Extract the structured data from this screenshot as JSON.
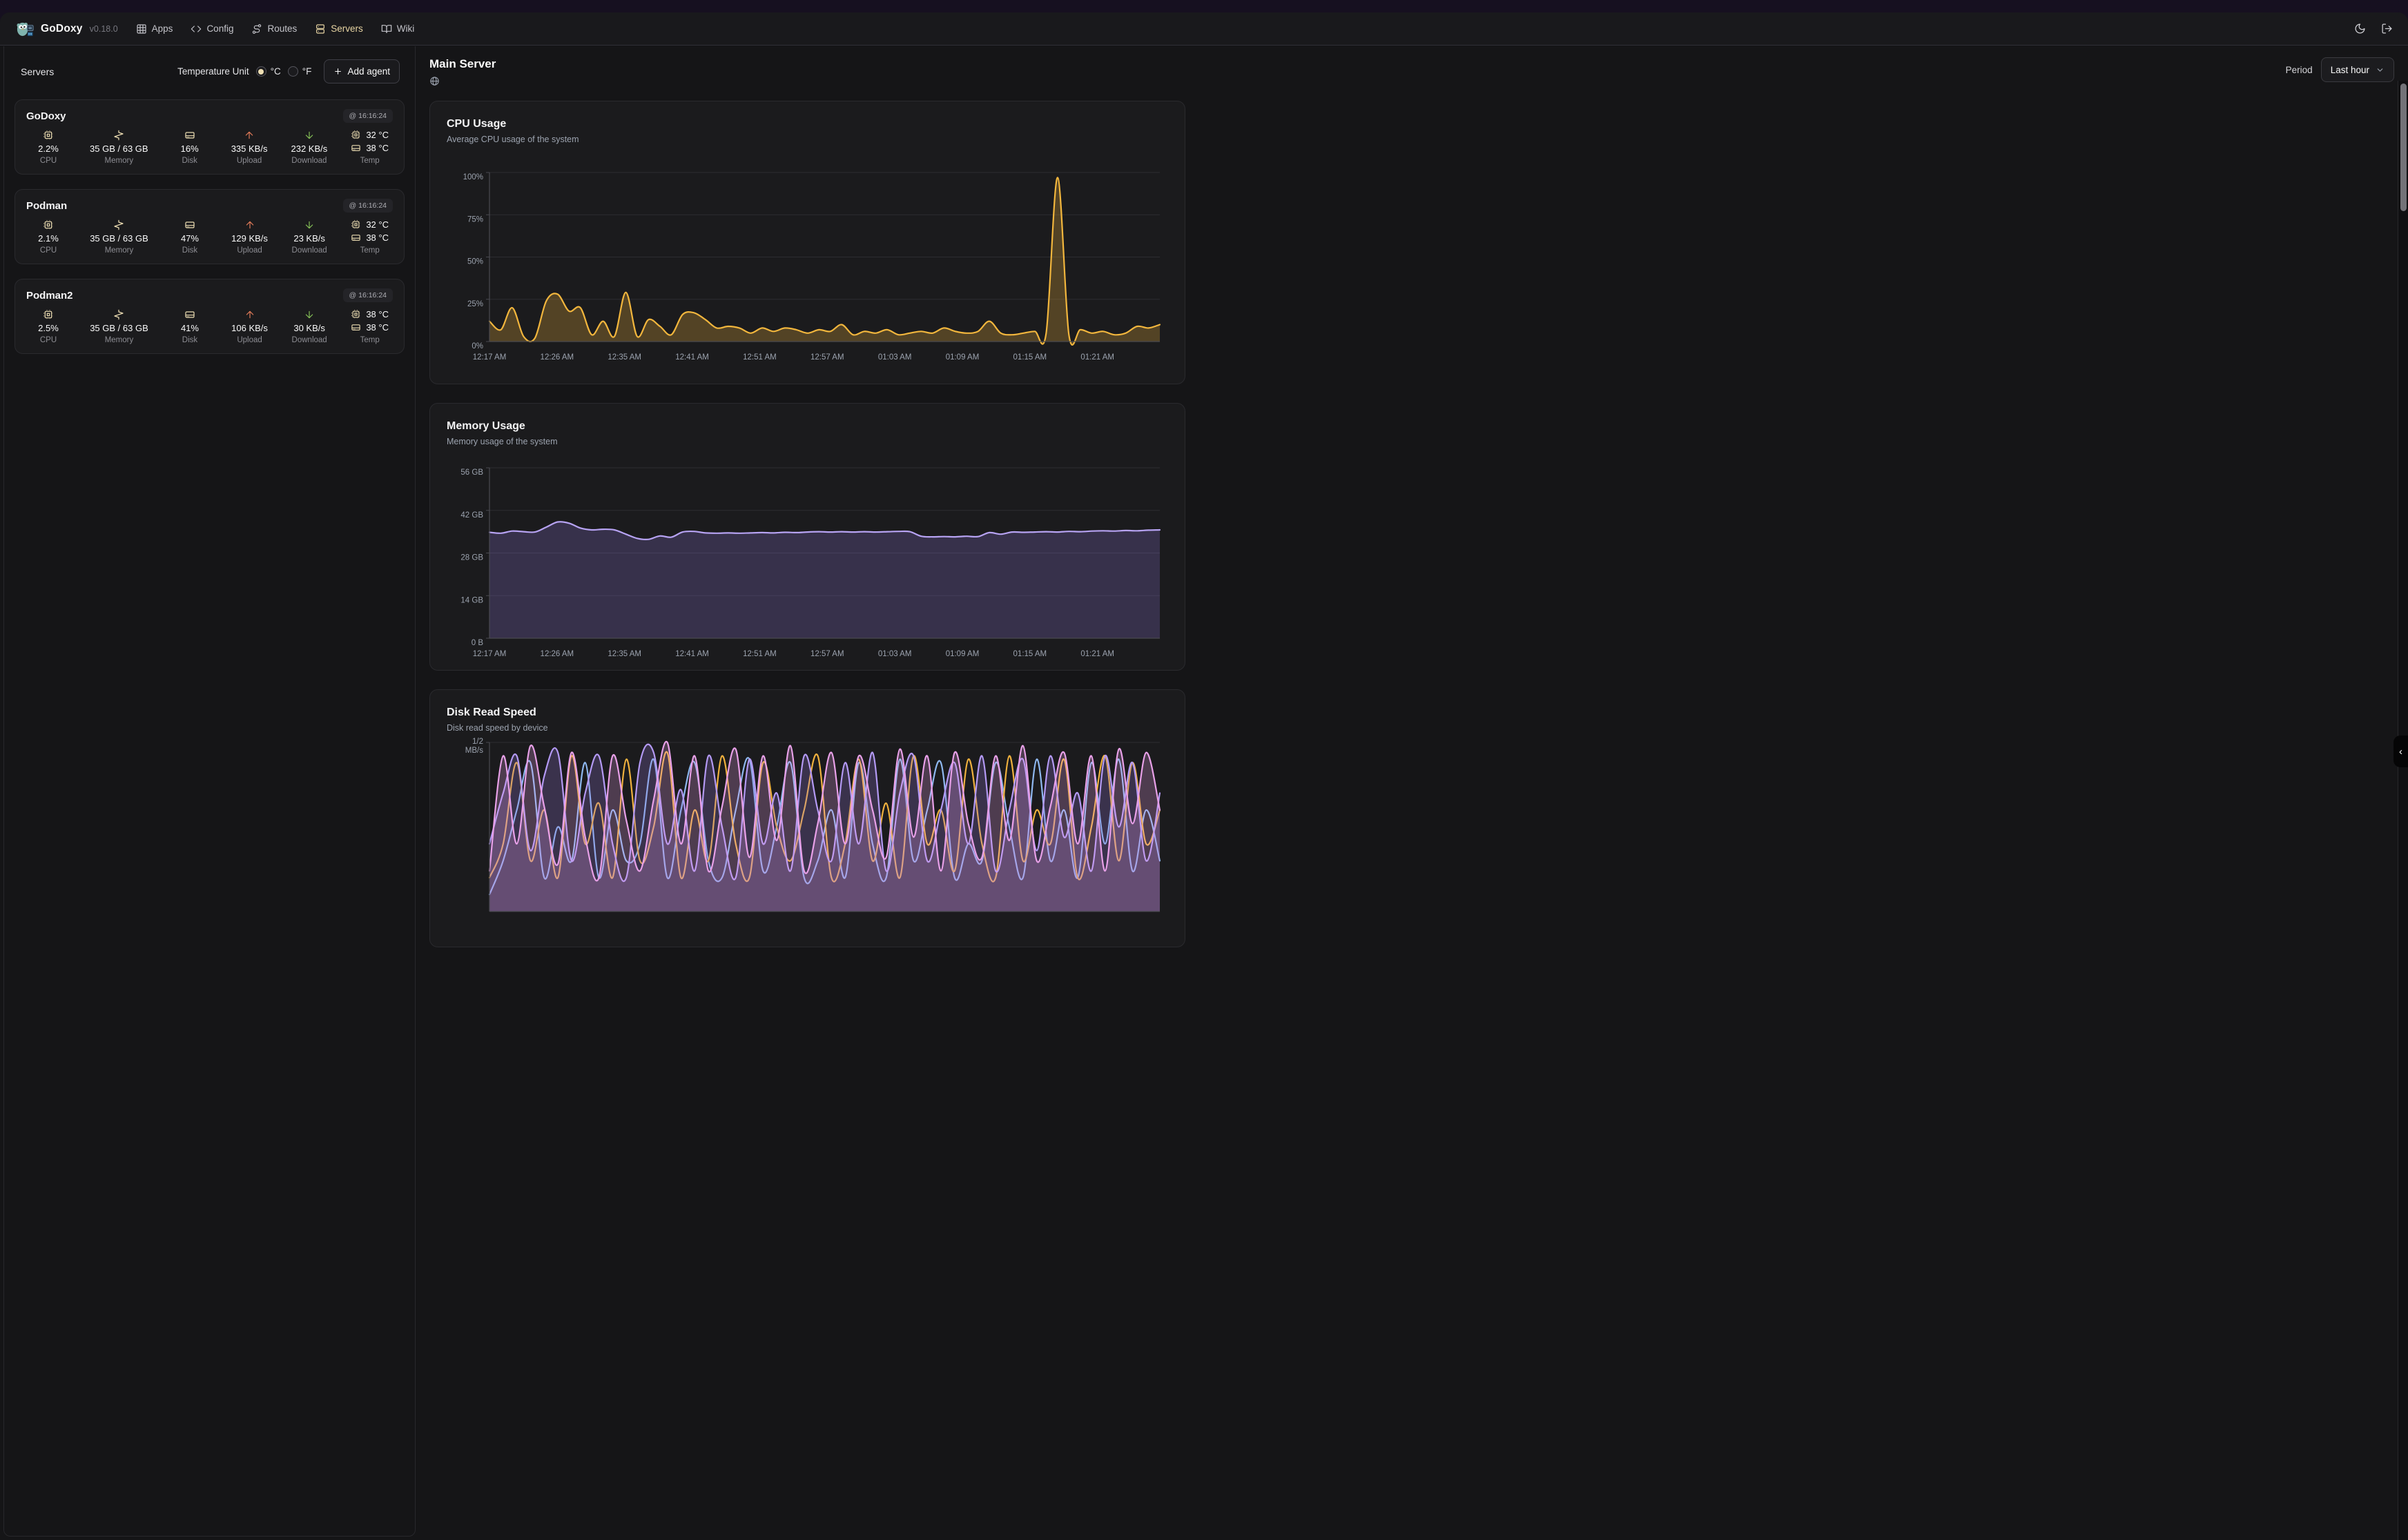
{
  "nav": {
    "brand": "GoDoxy",
    "version": "v0.18.0",
    "items": [
      {
        "label": "Apps",
        "icon": "grid-icon",
        "active": false
      },
      {
        "label": "Config",
        "icon": "code-icon",
        "active": false
      },
      {
        "label": "Routes",
        "icon": "route-icon",
        "active": false
      },
      {
        "label": "Servers",
        "icon": "server-icon",
        "active": true
      },
      {
        "label": "Wiki",
        "icon": "book-icon",
        "active": false
      }
    ],
    "right_icons": [
      "moon-icon",
      "logout-icon"
    ]
  },
  "sidebar": {
    "title": "Servers",
    "temperature_unit_label": "Temperature Unit",
    "unit_celsius": "°C",
    "unit_fahrenheit": "°F",
    "selected_unit": "°C",
    "add_agent_label": "Add agent",
    "stat_labels": {
      "cpu": "CPU",
      "memory": "Memory",
      "disk": "Disk",
      "upload": "Upload",
      "download": "Download",
      "temp": "Temp"
    },
    "servers": [
      {
        "name": "GoDoxy",
        "timestamp": "@ 16:16:24",
        "cpu": "2.2%",
        "memory": "35 GB / 63 GB",
        "disk": "16%",
        "upload": "335 KB/s",
        "download": "232 KB/s",
        "temp_cpu": "32 °C",
        "temp_disk": "38 °C"
      },
      {
        "name": "Podman",
        "timestamp": "@ 16:16:24",
        "cpu": "2.1%",
        "memory": "35 GB / 63 GB",
        "disk": "47%",
        "upload": "129 KB/s",
        "download": "23 KB/s",
        "temp_cpu": "32 °C",
        "temp_disk": "38 °C"
      },
      {
        "name": "Podman2",
        "timestamp": "@ 16:16:24",
        "cpu": "2.5%",
        "memory": "35 GB / 63 GB",
        "disk": "41%",
        "upload": "106 KB/s",
        "download": "30 KB/s",
        "temp_cpu": "38 °C",
        "temp_disk": "38 °C"
      }
    ]
  },
  "main": {
    "title": "Main Server",
    "period_label": "Period",
    "period_value": "Last hour",
    "collapse_glyph": "‹"
  },
  "colors": {
    "accent_cream": "#e8d5a3",
    "icon_cream": "#eedfb4",
    "upload_red": "#e07a58",
    "download_green": "#84bf56",
    "cpu_line": "#f2b63d",
    "memory_line": "#b7a3f3",
    "grid": "#2d2d31",
    "axis": "#4a4a50",
    "tick_text": "#9ca3af"
  },
  "chart_data": [
    {
      "id": "cpu",
      "type": "area",
      "title": "CPU Usage",
      "subtitle": "Average CPU usage of the system",
      "ylim": [
        0,
        100
      ],
      "ytick_values": [
        100,
        75,
        50,
        25,
        0
      ],
      "ytick_labels": [
        "100%",
        "75%",
        "50%",
        "25%",
        "0%"
      ],
      "xtick_labels": [
        "12:17 AM",
        "12:26 AM",
        "12:35 AM",
        "12:41 AM",
        "12:51 AM",
        "12:57 AM",
        "01:03 AM",
        "01:09 AM",
        "01:15 AM",
        "01:21 AM"
      ],
      "grid": true,
      "legend": false,
      "series": [
        {
          "name": "cpu",
          "color": "#f2b63d",
          "fill": "rgba(242,182,61,0.26)",
          "values": [
            12,
            7,
            20,
            3,
            2,
            24,
            28,
            18,
            20,
            4,
            12,
            3,
            29,
            3,
            13,
            9,
            4,
            16,
            17,
            13,
            8,
            9,
            8,
            5,
            8,
            6,
            8,
            7,
            5,
            7,
            6,
            10,
            4,
            6,
            5,
            7,
            4,
            5,
            6,
            5,
            8,
            6,
            5,
            6,
            12,
            5,
            4,
            5,
            6,
            5,
            97,
            4,
            7,
            5,
            6,
            4,
            5,
            9,
            8,
            10
          ]
        }
      ]
    },
    {
      "id": "memory",
      "type": "area",
      "title": "Memory Usage",
      "subtitle": "Memory usage of the system",
      "ylim": [
        0,
        56
      ],
      "ytick_values": [
        56,
        42,
        28,
        14,
        0
      ],
      "ytick_labels": [
        "56 GB",
        "42 GB",
        "28 GB",
        "14 GB",
        "0 B"
      ],
      "xtick_labels": [
        "12:17 AM",
        "12:26 AM",
        "12:35 AM",
        "12:41 AM",
        "12:51 AM",
        "12:57 AM",
        "01:03 AM",
        "01:09 AM",
        "01:15 AM",
        "01:21 AM"
      ],
      "grid": true,
      "legend": false,
      "series": [
        {
          "name": "memory",
          "color": "#b7a3f3",
          "fill": "rgba(154,127,240,0.22)",
          "values": [
            34.8,
            34.5,
            35.2,
            35.0,
            34.9,
            36.5,
            38.2,
            37.8,
            36.2,
            35.6,
            35.8,
            35.6,
            34.2,
            32.8,
            32.5,
            33.6,
            33.2,
            34.9,
            35.1,
            34.6,
            34.5,
            34.6,
            34.5,
            34.6,
            34.7,
            34.6,
            34.8,
            34.7,
            34.9,
            35.0,
            34.9,
            35.0,
            34.9,
            35.0,
            34.9,
            35.0,
            35.1,
            35.0,
            33.5,
            33.3,
            33.4,
            33.3,
            33.5,
            33.4,
            34.7,
            34.2,
            34.9,
            34.8,
            34.9,
            35.0,
            34.9,
            35.1,
            35.0,
            35.2,
            35.3,
            35.2,
            35.4,
            35.3,
            35.5,
            35.6
          ]
        }
      ]
    },
    {
      "id": "disk",
      "type": "line",
      "title": "Disk Read Speed",
      "subtitle": "Disk read speed by device",
      "ylim": [
        0,
        0.5
      ],
      "ytick_values": [
        0.5
      ],
      "ytick_labels": [
        "1/2\nMB/s"
      ],
      "xtick_labels": [],
      "grid": true,
      "legend": false,
      "note": "chart partially cut off at bottom of viewport",
      "series": [
        {
          "name": "s4",
          "color": "#8fb8f0",
          "fill": "none",
          "values": [
            0.05,
            0.15,
            0.3,
            0.44,
            0.1,
            0.25,
            0.15,
            0.44,
            0.1,
            0.3,
            0.15,
            0.2,
            0.45,
            0.1,
            0.3,
            0.44,
            0.15,
            0.1,
            0.3,
            0.45,
            0.12,
            0.25,
            0.44,
            0.1,
            0.15,
            0.3,
            0.1,
            0.44,
            0.2,
            0.1,
            0.45,
            0.15,
            0.3,
            0.44,
            0.1,
            0.2,
            0.15,
            0.44,
            0.25,
            0.1,
            0.45,
            0.15,
            0.3,
            0.1,
            0.44,
            0.2,
            0.45,
            0.12,
            0.3,
            0.15
          ]
        },
        {
          "name": "s3",
          "color": "#f0b13e",
          "fill": "none",
          "values": [
            0.1,
            0.2,
            0.44,
            0.15,
            0.3,
            0.1,
            0.46,
            0.2,
            0.32,
            0.1,
            0.45,
            0.15,
            0.25,
            0.47,
            0.1,
            0.3,
            0.15,
            0.46,
            0.2,
            0.1,
            0.44,
            0.25,
            0.15,
            0.3,
            0.46,
            0.1,
            0.2,
            0.45,
            0.15,
            0.32,
            0.1,
            0.46,
            0.2,
            0.3,
            0.12,
            0.45,
            0.2,
            0.1,
            0.46,
            0.15,
            0.3,
            0.2,
            0.45,
            0.1,
            0.25,
            0.46,
            0.15,
            0.44,
            0.2,
            0.3
          ]
        },
        {
          "name": "s2",
          "color": "#b49af5",
          "fill": "rgba(150,120,220,0.25)",
          "values": [
            0.2,
            0.35,
            0.46,
            0.18,
            0.4,
            0.47,
            0.15,
            0.35,
            0.46,
            0.2,
            0.1,
            0.44,
            0.47,
            0.2,
            0.36,
            0.12,
            0.46,
            0.25,
            0.1,
            0.45,
            0.2,
            0.35,
            0.12,
            0.46,
            0.3,
            0.15,
            0.44,
            0.2,
            0.47,
            0.12,
            0.35,
            0.46,
            0.15,
            0.3,
            0.44,
            0.2,
            0.46,
            0.12,
            0.3,
            0.45,
            0.18,
            0.46,
            0.22,
            0.35,
            0.12,
            0.46,
            0.25,
            0.44,
            0.15,
            0.35
          ]
        },
        {
          "name": "s1",
          "color": "#e9a1e9",
          "fill": "rgba(230,160,230,0.25)",
          "values": [
            0.12,
            0.46,
            0.2,
            0.49,
            0.31,
            0.14,
            0.47,
            0.22,
            0.1,
            0.46,
            0.27,
            0.12,
            0.33,
            0.5,
            0.2,
            0.46,
            0.12,
            0.31,
            0.48,
            0.16,
            0.46,
            0.21,
            0.49,
            0.12,
            0.26,
            0.47,
            0.2,
            0.46,
            0.3,
            0.16,
            0.48,
            0.22,
            0.46,
            0.12,
            0.47,
            0.26,
            0.16,
            0.46,
            0.21,
            0.49,
            0.15,
            0.31,
            0.47,
            0.2,
            0.46,
            0.12,
            0.48,
            0.26,
            0.47,
            0.3
          ]
        }
      ]
    }
  ]
}
